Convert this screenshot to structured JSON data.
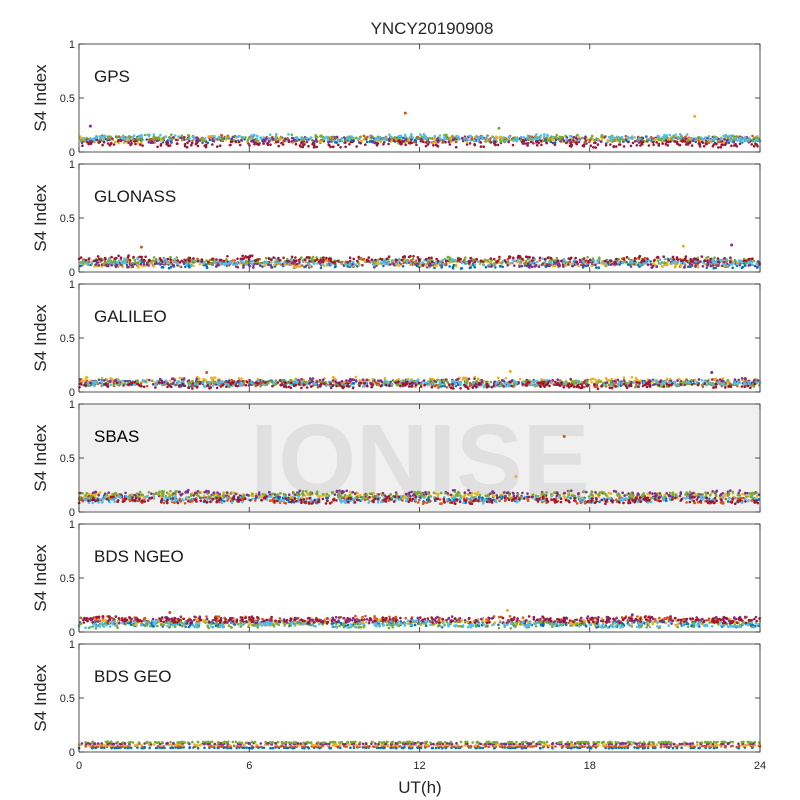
{
  "figure": {
    "title": "YNCY20190908",
    "xlabel": "UT(h)",
    "watermark": "IONISE"
  },
  "colors": [
    "#0072BD",
    "#D95319",
    "#EDB120",
    "#7E2F8E",
    "#77AC30",
    "#4DBEEE",
    "#A2142F"
  ],
  "chart_data": [
    {
      "type": "scatter",
      "panel": "GPS",
      "ylabel": "S4 Index",
      "xlim": [
        0,
        24
      ],
      "ylim": [
        0,
        1
      ],
      "xticks": [],
      "yticks": [
        0,
        0.5,
        1
      ],
      "series_count": 7,
      "baseline": [
        0.04,
        0.15
      ],
      "outliers": [
        {
          "x": 11.5,
          "y": 0.36
        },
        {
          "x": 21.7,
          "y": 0.33
        },
        {
          "x": 0.4,
          "y": 0.24
        },
        {
          "x": 14.8,
          "y": 0.22
        }
      ]
    },
    {
      "type": "scatter",
      "panel": "GLONASS",
      "ylabel": "S4 Index",
      "xlim": [
        0,
        24
      ],
      "ylim": [
        0,
        1
      ],
      "xticks": [],
      "yticks": [
        0,
        0.5,
        1
      ],
      "series_count": 7,
      "baseline": [
        0.03,
        0.14
      ],
      "outliers": [
        {
          "x": 2.2,
          "y": 0.23
        },
        {
          "x": 21.3,
          "y": 0.24
        },
        {
          "x": 23.0,
          "y": 0.25
        }
      ]
    },
    {
      "type": "scatter",
      "panel": "GALILEO",
      "ylabel": "S4 Index",
      "xlim": [
        0,
        24
      ],
      "ylim": [
        0,
        1
      ],
      "xticks": [],
      "yticks": [
        0,
        0.5,
        1
      ],
      "series_count": 7,
      "baseline": [
        0.03,
        0.14
      ],
      "outliers": [
        {
          "x": 4.5,
          "y": 0.18
        },
        {
          "x": 15.2,
          "y": 0.19
        },
        {
          "x": 22.3,
          "y": 0.18
        }
      ]
    },
    {
      "type": "scatter",
      "panel": "SBAS",
      "ylabel": "S4 Index",
      "xlim": [
        0,
        24
      ],
      "ylim": [
        0,
        1
      ],
      "xticks": [],
      "yticks": [
        0,
        0.5,
        1
      ],
      "series_count": 7,
      "baseline": [
        0.05,
        0.25
      ],
      "outliers": [
        {
          "x": 17.1,
          "y": 0.7
        },
        {
          "x": 15.4,
          "y": 0.33
        }
      ]
    },
    {
      "type": "scatter",
      "panel": "BDS NGEO",
      "ylabel": "S4 Index",
      "xlim": [
        0,
        24
      ],
      "ylim": [
        0,
        1
      ],
      "xticks": [],
      "yticks": [
        0,
        0.5,
        1
      ],
      "series_count": 7,
      "baseline": [
        0.03,
        0.13
      ],
      "outliers": [
        {
          "x": 3.2,
          "y": 0.18
        },
        {
          "x": 15.1,
          "y": 0.2
        },
        {
          "x": 19.5,
          "y": 0.16
        }
      ]
    },
    {
      "type": "scatter",
      "panel": "BDS GEO",
      "ylabel": "S4 Index",
      "xlim": [
        0,
        24
      ],
      "ylim": [
        0,
        1
      ],
      "xticks": [
        0,
        6,
        12,
        18,
        24
      ],
      "yticks": [
        0,
        0.5,
        1
      ],
      "series_count": 5,
      "baseline": [
        0.04,
        0.09
      ],
      "outliers": []
    }
  ]
}
